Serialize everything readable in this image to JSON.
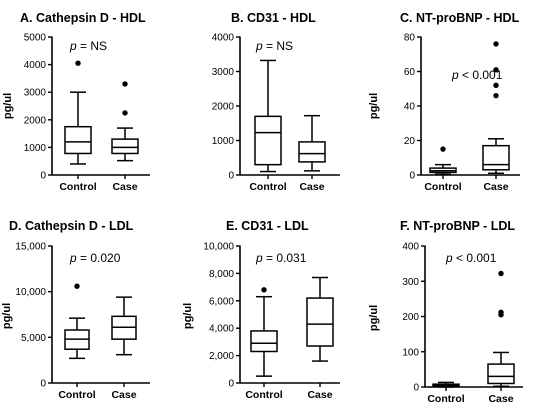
{
  "chart_data": [
    {
      "type": "box",
      "title": "A. Cathepsin D - HDL",
      "ylabel": "pg/ul",
      "ylim": [
        0,
        5000
      ],
      "yticks": [
        "0",
        "1000",
        "2000",
        "3000",
        "4000",
        "5000"
      ],
      "annotation": {
        "prefix": "p",
        "text": " = NS"
      },
      "categories": [
        "Control",
        "Case"
      ],
      "boxes": [
        {
          "min": 400,
          "q1": 780,
          "median": 1200,
          "q3": 1750,
          "max": 3000,
          "outliers": [
            4050
          ]
        },
        {
          "min": 520,
          "q1": 780,
          "median": 1000,
          "q3": 1300,
          "max": 1700,
          "outliers": [
            2250,
            3300
          ]
        }
      ]
    },
    {
      "type": "box",
      "title": "B. CD31 - HDL",
      "ylabel": "pg/ul",
      "ylim": [
        0,
        4000
      ],
      "yticks": [
        "0",
        "1000",
        "2000",
        "3000",
        "4000"
      ],
      "annotation": {
        "prefix": "p",
        "text": " = NS"
      },
      "categories": [
        "Control",
        "Case"
      ],
      "boxes": [
        {
          "min": 100,
          "q1": 300,
          "median": 1230,
          "q3": 1700,
          "max": 3320,
          "outliers": []
        },
        {
          "min": 120,
          "q1": 380,
          "median": 620,
          "q3": 960,
          "max": 1720,
          "outliers": []
        }
      ]
    },
    {
      "type": "box",
      "title": "C. NT-proBNP - HDL",
      "ylabel": "pg/ul",
      "ylim": [
        0,
        80
      ],
      "yticks": [
        "0",
        "20",
        "40",
        "60",
        "80"
      ],
      "annotation": {
        "prefix": "p",
        "text": " < 0.001"
      },
      "categories": [
        "Control",
        "Case"
      ],
      "boxes": [
        {
          "min": 0.5,
          "q1": 1.5,
          "median": 2.5,
          "q3": 4,
          "max": 6,
          "outliers": [
            15
          ]
        },
        {
          "min": 1,
          "q1": 3,
          "median": 6,
          "q3": 17,
          "max": 21,
          "outliers": [
            46,
            52,
            61,
            76
          ]
        }
      ]
    },
    {
      "type": "box",
      "title": "D. Cathepsin D - LDL",
      "ylabel": "pg/ul",
      "ylim": [
        0,
        15000
      ],
      "yticks": [
        "0",
        "5,000",
        "10,000",
        "15,000"
      ],
      "annotation": {
        "prefix": "p",
        "text": " = 0.020"
      },
      "categories": [
        "Control",
        "Case"
      ],
      "boxes": [
        {
          "min": 2700,
          "q1": 3700,
          "median": 4800,
          "q3": 5800,
          "max": 7100,
          "outliers": [
            10600
          ]
        },
        {
          "min": 3100,
          "q1": 4800,
          "median": 6100,
          "q3": 7300,
          "max": 9400,
          "outliers": []
        }
      ]
    },
    {
      "type": "box",
      "title": "E. CD31 - LDL",
      "ylabel": "pg/ul",
      "ylim": [
        0,
        10000
      ],
      "yticks": [
        "0",
        "2,000",
        "4,000",
        "6,000",
        "8,000",
        "10,000"
      ],
      "annotation": {
        "prefix": "p",
        "text": " = 0.031"
      },
      "categories": [
        "Control",
        "Case"
      ],
      "boxes": [
        {
          "min": 500,
          "q1": 2300,
          "median": 2900,
          "q3": 3800,
          "max": 6300,
          "outliers": [
            6800
          ]
        },
        {
          "min": 1600,
          "q1": 2700,
          "median": 4300,
          "q3": 6200,
          "max": 7700,
          "outliers": []
        }
      ]
    },
    {
      "type": "box",
      "title": "F. NT-proBNP - LDL",
      "ylabel": "pg/ul",
      "ylim": [
        0,
        400
      ],
      "yticks": [
        "0",
        "100",
        "200",
        "300",
        "400"
      ],
      "annotation": {
        "prefix": "p",
        "text": " < 0.001"
      },
      "categories": [
        "Control",
        "Case"
      ],
      "boxes": [
        {
          "min": 0,
          "q1": 2,
          "median": 5,
          "q3": 8,
          "max": 13,
          "outliers": []
        },
        {
          "min": 2,
          "q1": 10,
          "median": 30,
          "q3": 65,
          "max": 98,
          "outliers": [
            205,
            212,
            322
          ]
        }
      ]
    }
  ]
}
